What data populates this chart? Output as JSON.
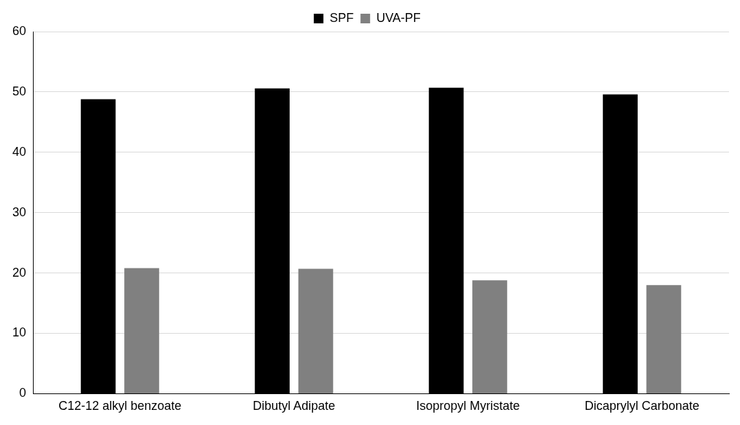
{
  "chart_data": {
    "type": "bar",
    "categories": [
      "C12-12 alkyl benzoate",
      "Dibutyl Adipate",
      "Isopropyl Myristate",
      "Dicaprylyl Carbonate"
    ],
    "series": [
      {
        "name": "SPF",
        "color": "#000000",
        "values": [
          48.8,
          50.6,
          50.7,
          49.6
        ]
      },
      {
        "name": "UVA-PF",
        "color": "#808080",
        "values": [
          20.8,
          20.7,
          18.8,
          18.0
        ]
      }
    ],
    "ylim": [
      0,
      60
    ],
    "yticks": [
      0,
      10,
      20,
      30,
      40,
      50,
      60
    ],
    "grid": "y",
    "legend": "top"
  }
}
